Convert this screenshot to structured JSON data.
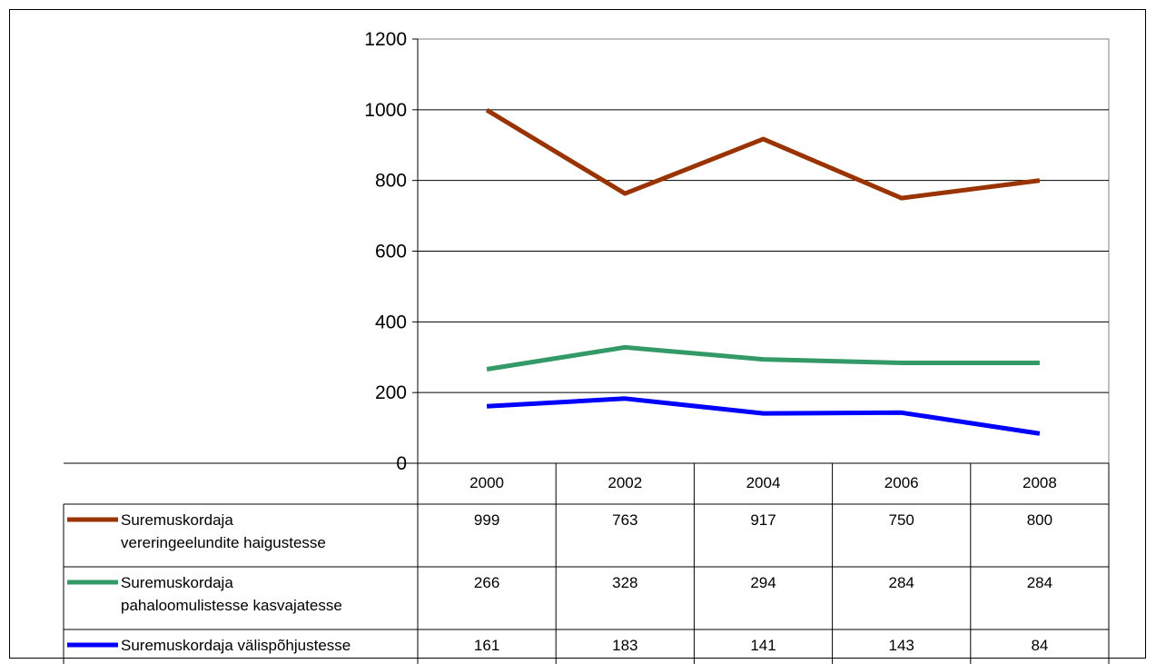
{
  "chart_data": {
    "type": "line",
    "title": "",
    "xlabel": "",
    "ylabel": "",
    "ylim": [
      0,
      1200
    ],
    "yticks": [
      0,
      200,
      400,
      600,
      800,
      1000,
      1200
    ],
    "grid": true,
    "legend": "data table below plot",
    "categories": [
      "2000",
      "2002",
      "2004",
      "2006",
      "2008"
    ],
    "series": [
      {
        "name": "Suremuskordaja vereringeelundite haigustesse",
        "name_lines": [
          "Suremuskordaja",
          "vereringeelundite haigustesse"
        ],
        "color": "#993300",
        "values": [
          999,
          763,
          917,
          750,
          800
        ]
      },
      {
        "name": "Suremuskordaja pahaloomulistesse kasvajatesse",
        "name_lines": [
          "Suremuskordaja",
          "pahaloomulistesse kasvajatesse"
        ],
        "color": "#339966",
        "values": [
          266,
          328,
          294,
          284,
          284
        ]
      },
      {
        "name": "Suremuskordaja välispõhjustesse",
        "name_lines": [
          "Suremuskordaja välispõhjustesse"
        ],
        "color": "#0000ff",
        "values": [
          161,
          183,
          141,
          143,
          84
        ]
      }
    ]
  }
}
